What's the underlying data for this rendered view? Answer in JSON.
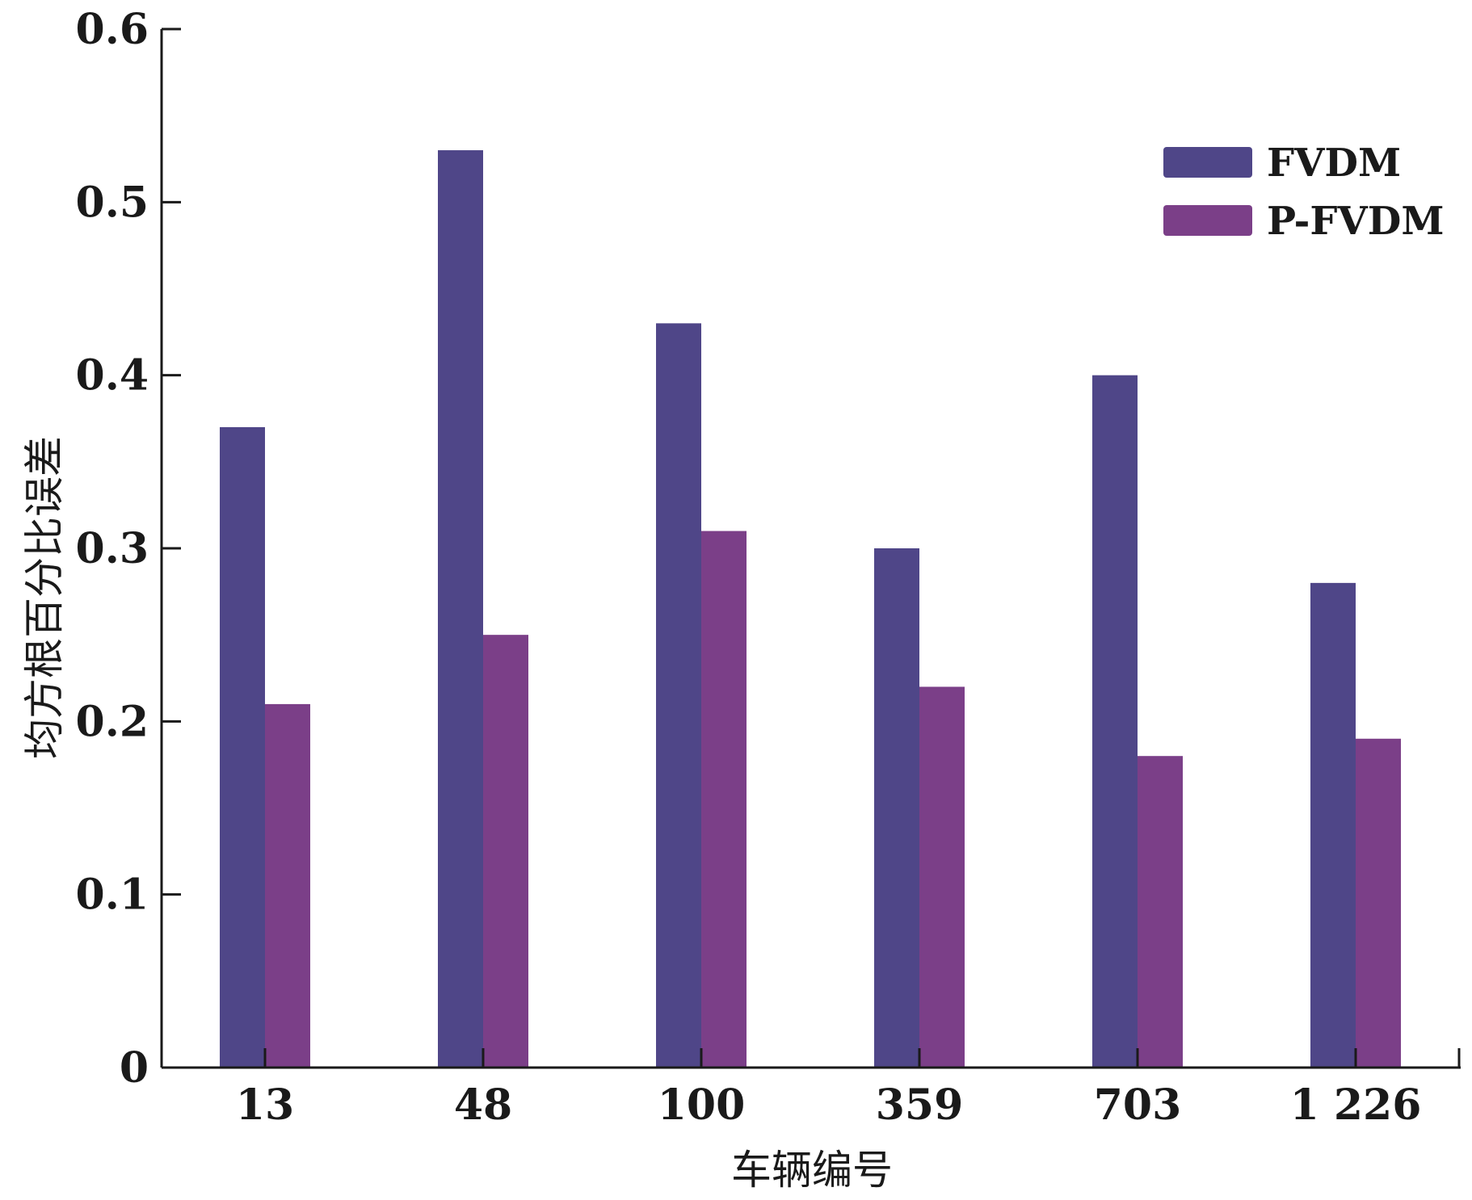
{
  "chart_data": {
    "type": "bar",
    "categories": [
      "13",
      "48",
      "100",
      "359",
      "703",
      "1 226"
    ],
    "series": [
      {
        "name": "FVDM",
        "values": [
          0.37,
          0.53,
          0.43,
          0.3,
          0.4,
          0.28
        ],
        "color": "#4f4688"
      },
      {
        "name": "P-FVDM",
        "values": [
          0.21,
          0.25,
          0.31,
          0.22,
          0.18,
          0.19
        ],
        "color": "#7b3f88"
      }
    ],
    "yticks": [
      "0",
      "0.1",
      "0.2",
      "0.3",
      "0.4",
      "0.5",
      "0.6"
    ],
    "ylim": [
      0,
      0.6
    ],
    "xlabel": "车辆编号",
    "ylabel": "均方根百分比误差",
    "legend": "top-right",
    "grid": false
  }
}
